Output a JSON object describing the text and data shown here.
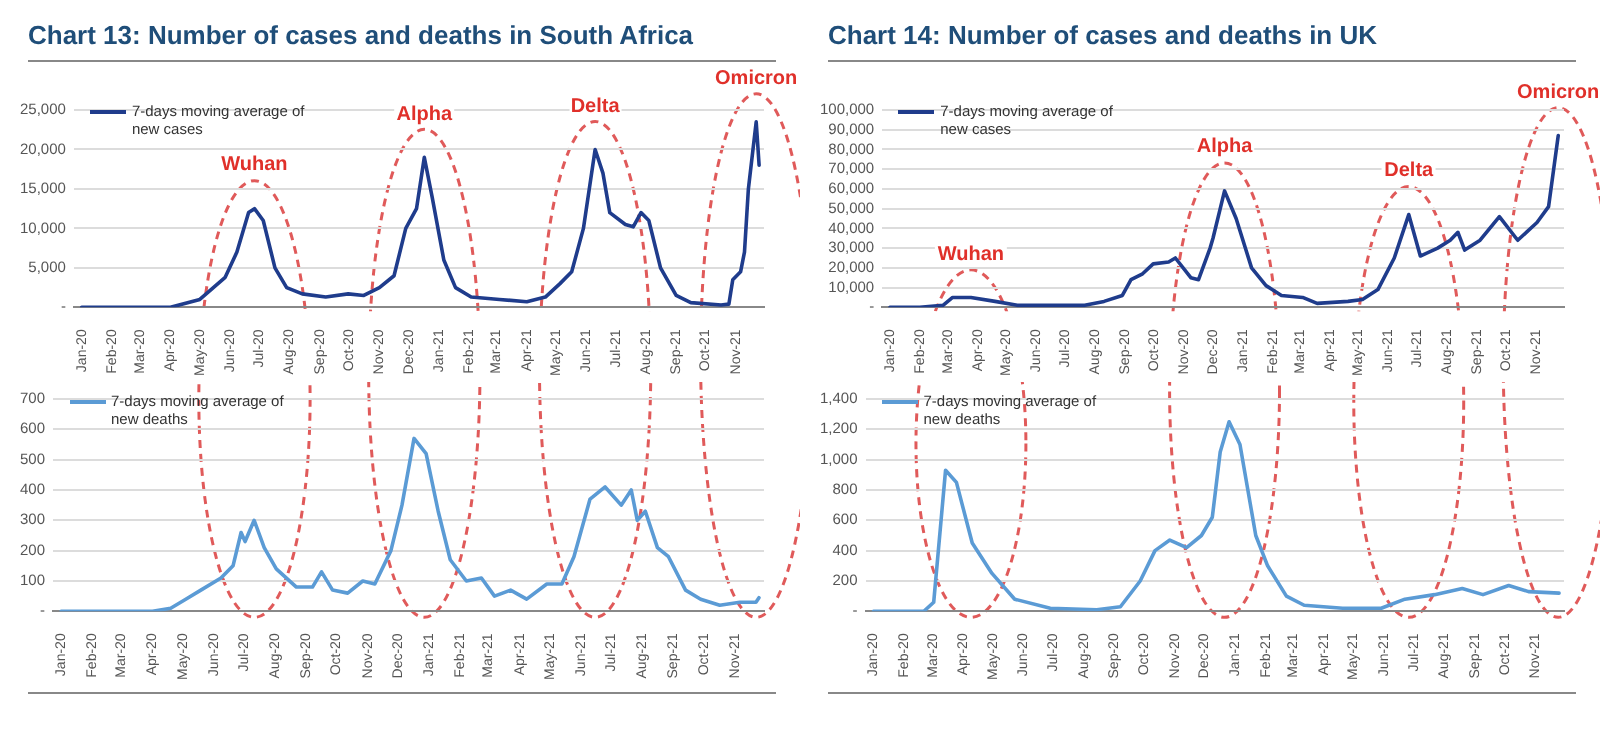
{
  "chart_data": [
    {
      "type": "line",
      "title": "Chart 13: Number of cases and deaths in South Africa",
      "legend": "top left",
      "grid": "y",
      "marker": "none",
      "line_style": "solid",
      "xlim": [
        "2019-12-24",
        "2021-11-30"
      ],
      "xticks": [
        {
          "value": "2020-01",
          "label": "Jan-20"
        },
        {
          "value": "2020-02",
          "label": "Feb-20"
        },
        {
          "value": "2020-03",
          "label": "Mar-20"
        },
        {
          "value": "2020-04",
          "label": "Apr-20"
        },
        {
          "value": "2020-05",
          "label": "May-20"
        },
        {
          "value": "2020-06",
          "label": "Jun-20"
        },
        {
          "value": "2020-07",
          "label": "Jul-20"
        },
        {
          "value": "2020-08",
          "label": "Aug-20"
        },
        {
          "value": "2020-09",
          "label": "Sep-20"
        },
        {
          "value": "2020-10",
          "label": "Oct-20"
        },
        {
          "value": "2020-11",
          "label": "Nov-20"
        },
        {
          "value": "2020-12",
          "label": "Dec-20"
        },
        {
          "value": "2021-01",
          "label": "Jan-21"
        },
        {
          "value": "2021-02",
          "label": "Feb-21"
        },
        {
          "value": "2021-03",
          "label": "Mar-21"
        },
        {
          "value": "2021-04",
          "label": "Apr-21"
        },
        {
          "value": "2021-05",
          "label": "May-21"
        },
        {
          "value": "2021-06",
          "label": "Jun-21"
        },
        {
          "value": "2021-07",
          "label": "Jul-21"
        },
        {
          "value": "2021-08",
          "label": "Aug-21"
        },
        {
          "value": "2021-09",
          "label": "Sep-21"
        },
        {
          "value": "2021-10",
          "label": "Oct-21"
        },
        {
          "value": "2021-11",
          "label": "Nov-21"
        }
      ],
      "ylim": [
        0,
        25000
      ],
      "yticks": [
        {
          "value": 0,
          "label": "-"
        },
        {
          "value": 5000,
          "label": "5,000"
        },
        {
          "value": 10000,
          "label": "10,000"
        },
        {
          "value": 15000,
          "label": "15,000"
        },
        {
          "value": 20000,
          "label": "20,000"
        },
        {
          "value": 25000,
          "label": "25,000"
        }
      ],
      "annotations": [
        {
          "text": "Wuhan",
          "x": "2020-06-26",
          "y": 12500
        },
        {
          "text": "Alpha",
          "x": "2020-12-17",
          "y": 19000
        },
        {
          "text": "Delta",
          "x": "2021-06-10",
          "y": 20000
        },
        {
          "text": "Omicron",
          "x": "2021-11-22",
          "y": 23500
        }
      ],
      "series": [
        {
          "name": "7-days moving average of new cases",
          "color": "#1f3c8c",
          "x": [
            "2020-01-01",
            "2020-03-01",
            "2020-04-01",
            "2020-05-01",
            "2020-05-27",
            "2020-06-08",
            "2020-06-20",
            "2020-06-26",
            "2020-07-05",
            "2020-07-17",
            "2020-07-29",
            "2020-08-14",
            "2020-09-07",
            "2020-09-30",
            "2020-10-16",
            "2020-11-01",
            "2020-11-16",
            "2020-11-28",
            "2020-12-09",
            "2020-12-17",
            "2020-12-25",
            "2021-01-06",
            "2021-01-18",
            "2021-02-03",
            "2021-03-04",
            "2021-04-01",
            "2021-04-20",
            "2021-05-05",
            "2021-05-17",
            "2021-05-29",
            "2021-06-10",
            "2021-06-18",
            "2021-06-25",
            "2021-07-11",
            "2021-07-19",
            "2021-07-27",
            "2021-08-04",
            "2021-08-16",
            "2021-09-01",
            "2021-09-16",
            "2021-10-17",
            "2021-10-25",
            "2021-10-29",
            "2021-11-06",
            "2021-11-10",
            "2021-11-14",
            "2021-11-22",
            "2021-11-25"
          ],
          "values": [
            0,
            0,
            0,
            1000,
            3800,
            7000,
            12000,
            12500,
            11000,
            5000,
            2500,
            1700,
            1300,
            1700,
            1500,
            2500,
            4000,
            10000,
            12500,
            19000,
            14000,
            6000,
            2500,
            1300,
            1000,
            700,
            1300,
            3000,
            4500,
            10000,
            20000,
            17000,
            12000,
            10500,
            10200,
            12000,
            11000,
            5000,
            1500,
            600,
            300,
            400,
            3500,
            4500,
            7000,
            15000,
            23500,
            18000
          ]
        }
      ]
    },
    {
      "type": "line",
      "legend": "top left",
      "grid": "y",
      "marker": "none",
      "line_style": "solid",
      "xlim": [
        "2019-12-24",
        "2021-11-30"
      ],
      "xticks": [
        {
          "value": "2020-01",
          "label": "Jan-20"
        },
        {
          "value": "2020-02",
          "label": "Feb-20"
        },
        {
          "value": "2020-03",
          "label": "Mar-20"
        },
        {
          "value": "2020-04",
          "label": "Apr-20"
        },
        {
          "value": "2020-05",
          "label": "May-20"
        },
        {
          "value": "2020-06",
          "label": "Jun-20"
        },
        {
          "value": "2020-07",
          "label": "Jul-20"
        },
        {
          "value": "2020-08",
          "label": "Aug-20"
        },
        {
          "value": "2020-09",
          "label": "Sep-20"
        },
        {
          "value": "2020-10",
          "label": "Oct-20"
        },
        {
          "value": "2020-11",
          "label": "Nov-20"
        },
        {
          "value": "2020-12",
          "label": "Dec-20"
        },
        {
          "value": "2021-01",
          "label": "Jan-21"
        },
        {
          "value": "2021-02",
          "label": "Feb-21"
        },
        {
          "value": "2021-03",
          "label": "Mar-21"
        },
        {
          "value": "2021-04",
          "label": "Apr-21"
        },
        {
          "value": "2021-05",
          "label": "May-21"
        },
        {
          "value": "2021-06",
          "label": "Jun-21"
        },
        {
          "value": "2021-07",
          "label": "Jul-21"
        },
        {
          "value": "2021-08",
          "label": "Aug-21"
        },
        {
          "value": "2021-09",
          "label": "Sep-21"
        },
        {
          "value": "2021-10",
          "label": "Oct-21"
        },
        {
          "value": "2021-11",
          "label": "Nov-21"
        }
      ],
      "ylim": [
        0,
        700
      ],
      "yticks": [
        {
          "value": 0,
          "label": "-"
        },
        100,
        200,
        300,
        400,
        500,
        600,
        700
      ],
      "series": [
        {
          "name": "7-days moving average of new deaths",
          "color": "#5b9bd5",
          "x": [
            "2020-01-01",
            "2020-04-01",
            "2020-04-19",
            "2020-05-04",
            "2020-05-19",
            "2020-06-08",
            "2020-06-20",
            "2020-06-28",
            "2020-07-02",
            "2020-07-11",
            "2020-07-21",
            "2020-08-02",
            "2020-08-22",
            "2020-09-07",
            "2020-09-16",
            "2020-09-27",
            "2020-10-12",
            "2020-10-27",
            "2020-11-08",
            "2020-11-24",
            "2020-12-05",
            "2020-12-17",
            "2020-12-29",
            "2021-01-10",
            "2021-01-22",
            "2021-02-07",
            "2021-02-22",
            "2021-03-07",
            "2021-03-23",
            "2021-04-08",
            "2021-04-28",
            "2021-05-13",
            "2021-05-25",
            "2021-06-10",
            "2021-06-25",
            "2021-07-11",
            "2021-07-21",
            "2021-07-27",
            "2021-08-04",
            "2021-08-16",
            "2021-08-27",
            "2021-09-13",
            "2021-09-28",
            "2021-10-17",
            "2021-11-06",
            "2021-11-22",
            "2021-11-25"
          ],
          "values": [
            0,
            0,
            10,
            40,
            70,
            110,
            150,
            260,
            230,
            300,
            210,
            140,
            80,
            80,
            130,
            70,
            60,
            100,
            90,
            200,
            350,
            570,
            520,
            330,
            170,
            100,
            110,
            50,
            70,
            40,
            90,
            90,
            180,
            370,
            410,
            350,
            400,
            300,
            330,
            210,
            180,
            70,
            40,
            20,
            30,
            30,
            45
          ]
        }
      ]
    },
    {
      "type": "line",
      "title": "Chart 14: Number of cases and deaths in UK",
      "legend": "top left",
      "grid": "y",
      "marker": "none",
      "line_style": "solid",
      "xlim": [
        "2019-12-24",
        "2021-11-30"
      ],
      "xticks": [
        {
          "value": "2020-01",
          "label": "Jan-20"
        },
        {
          "value": "2020-02",
          "label": "Feb-20"
        },
        {
          "value": "2020-03",
          "label": "Mar-20"
        },
        {
          "value": "2020-04",
          "label": "Apr-20"
        },
        {
          "value": "2020-05",
          "label": "May-20"
        },
        {
          "value": "2020-06",
          "label": "Jun-20"
        },
        {
          "value": "2020-07",
          "label": "Jul-20"
        },
        {
          "value": "2020-08",
          "label": "Aug-20"
        },
        {
          "value": "2020-09",
          "label": "Sep-20"
        },
        {
          "value": "2020-10",
          "label": "Oct-20"
        },
        {
          "value": "2020-11",
          "label": "Nov-20"
        },
        {
          "value": "2020-12",
          "label": "Dec-20"
        },
        {
          "value": "2021-01",
          "label": "Jan-21"
        },
        {
          "value": "2021-02",
          "label": "Feb-21"
        },
        {
          "value": "2021-03",
          "label": "Mar-21"
        },
        {
          "value": "2021-04",
          "label": "Apr-21"
        },
        {
          "value": "2021-05",
          "label": "May-21"
        },
        {
          "value": "2021-06",
          "label": "Jun-21"
        },
        {
          "value": "2021-07",
          "label": "Jul-21"
        },
        {
          "value": "2021-08",
          "label": "Aug-21"
        },
        {
          "value": "2021-09",
          "label": "Sep-21"
        },
        {
          "value": "2021-10",
          "label": "Oct-21"
        },
        {
          "value": "2021-11",
          "label": "Nov-21"
        }
      ],
      "ylim": [
        0,
        100000
      ],
      "yticks": [
        {
          "value": 0,
          "label": "-"
        },
        {
          "value": 10000,
          "label": "10,000"
        },
        {
          "value": 20000,
          "label": "20,000"
        },
        {
          "value": 30000,
          "label": "30,000"
        },
        {
          "value": 40000,
          "label": "40,000"
        },
        {
          "value": 50000,
          "label": "50,000"
        },
        {
          "value": 60000,
          "label": "60,000"
        },
        {
          "value": 70000,
          "label": "70,000"
        },
        {
          "value": 80000,
          "label": "80,000"
        },
        {
          "value": 90000,
          "label": "90,000"
        },
        {
          "value": 100000,
          "label": "100,000"
        }
      ],
      "annotations": [
        {
          "text": "Wuhan",
          "x": "2020-03-25",
          "y": 4800
        },
        {
          "text": "Alpha",
          "x": "2020-12-13",
          "y": 59000
        },
        {
          "text": "Delta",
          "x": "2021-06-22",
          "y": 47000
        },
        {
          "text": "Omicron",
          "x": "2021-11-24",
          "y": 87000
        }
      ],
      "series": [
        {
          "name": "7-days moving average of new cases",
          "color": "#1f3c8c",
          "x": [
            "2020-01-01",
            "2020-02-01",
            "2020-02-25",
            "2020-03-06",
            "2020-03-25",
            "2020-04-19",
            "2020-05-12",
            "2020-06-13",
            "2020-07-21",
            "2020-08-10",
            "2020-08-29",
            "2020-09-07",
            "2020-09-19",
            "2020-09-30",
            "2020-10-16",
            "2020-10-23",
            "2020-11-08",
            "2020-11-16",
            "2020-11-28",
            "2020-12-01",
            "2020-12-13",
            "2020-12-25",
            "2021-01-10",
            "2021-01-25",
            "2021-02-10",
            "2021-03-04",
            "2021-03-19",
            "2021-04-20",
            "2021-05-05",
            "2021-05-21",
            "2021-06-07",
            "2021-06-22",
            "2021-07-04",
            "2021-07-22",
            "2021-08-04",
            "2021-08-12",
            "2021-08-19",
            "2021-09-04",
            "2021-09-24",
            "2021-10-13",
            "2021-11-02",
            "2021-11-14",
            "2021-11-24"
          ],
          "values": [
            0,
            0,
            1000,
            5000,
            5000,
            3000,
            1000,
            1000,
            1000,
            3000,
            6000,
            14000,
            17000,
            22000,
            23000,
            25000,
            15000,
            14000,
            30000,
            35000,
            59000,
            45000,
            20000,
            11000,
            6000,
            5000,
            2000,
            3000,
            4000,
            9000,
            25000,
            47000,
            26000,
            30000,
            34000,
            38000,
            29000,
            34000,
            46000,
            34000,
            43000,
            51000,
            87000
          ]
        }
      ]
    },
    {
      "type": "line",
      "legend": "top left",
      "grid": "y",
      "marker": "none",
      "line_style": "solid",
      "xlim": [
        "2019-12-24",
        "2021-11-30"
      ],
      "xticks": [
        {
          "value": "2020-01",
          "label": "Jan-20"
        },
        {
          "value": "2020-02",
          "label": "Feb-20"
        },
        {
          "value": "2020-03",
          "label": "Mar-20"
        },
        {
          "value": "2020-04",
          "label": "Apr-20"
        },
        {
          "value": "2020-05",
          "label": "May-20"
        },
        {
          "value": "2020-06",
          "label": "Jun-20"
        },
        {
          "value": "2020-07",
          "label": "Jul-20"
        },
        {
          "value": "2020-08",
          "label": "Aug-20"
        },
        {
          "value": "2020-09",
          "label": "Sep-20"
        },
        {
          "value": "2020-10",
          "label": "Oct-20"
        },
        {
          "value": "2020-11",
          "label": "Nov-20"
        },
        {
          "value": "2020-12",
          "label": "Dec-20"
        },
        {
          "value": "2021-01",
          "label": "Jan-21"
        },
        {
          "value": "2021-02",
          "label": "Feb-21"
        },
        {
          "value": "2021-03",
          "label": "Mar-21"
        },
        {
          "value": "2021-04",
          "label": "Apr-21"
        },
        {
          "value": "2021-05",
          "label": "May-21"
        },
        {
          "value": "2021-06",
          "label": "Jun-21"
        },
        {
          "value": "2021-07",
          "label": "Jul-21"
        },
        {
          "value": "2021-08",
          "label": "Aug-21"
        },
        {
          "value": "2021-09",
          "label": "Sep-21"
        },
        {
          "value": "2021-10",
          "label": "Oct-21"
        },
        {
          "value": "2021-11",
          "label": "Nov-21"
        }
      ],
      "ylim": [
        0,
        1400
      ],
      "yticks": [
        {
          "value": 0,
          "label": "-"
        },
        200,
        400,
        600,
        800,
        {
          "value": 1000,
          "label": "1,000"
        },
        {
          "value": 1200,
          "label": "1,200"
        },
        {
          "value": 1400,
          "label": "1,400"
        }
      ],
      "series": [
        {
          "name": "7-days moving average of new deaths",
          "color": "#5b9bd5",
          "x": [
            "2020-01-01",
            "2020-02-21",
            "2020-03-02",
            "2020-03-14",
            "2020-03-25",
            "2020-04-10",
            "2020-04-30",
            "2020-05-23",
            "2020-06-28",
            "2020-08-14",
            "2020-09-07",
            "2020-09-27",
            "2020-10-12",
            "2020-10-27",
            "2020-11-13",
            "2020-11-28",
            "2020-12-09",
            "2020-12-17",
            "2020-12-26",
            "2021-01-06",
            "2021-01-22",
            "2021-02-03",
            "2021-02-22",
            "2021-03-12",
            "2021-04-20",
            "2021-05-29",
            "2021-06-22",
            "2021-07-22",
            "2021-08-19",
            "2021-09-09",
            "2021-10-05",
            "2021-10-25",
            "2021-11-25"
          ],
          "values": [
            0,
            0,
            60,
            930,
            850,
            450,
            250,
            80,
            20,
            10,
            30,
            200,
            400,
            470,
            420,
            500,
            620,
            1050,
            1250,
            1100,
            500,
            300,
            100,
            40,
            20,
            20,
            80,
            110,
            150,
            110,
            170,
            130,
            120
          ]
        }
      ]
    }
  ]
}
